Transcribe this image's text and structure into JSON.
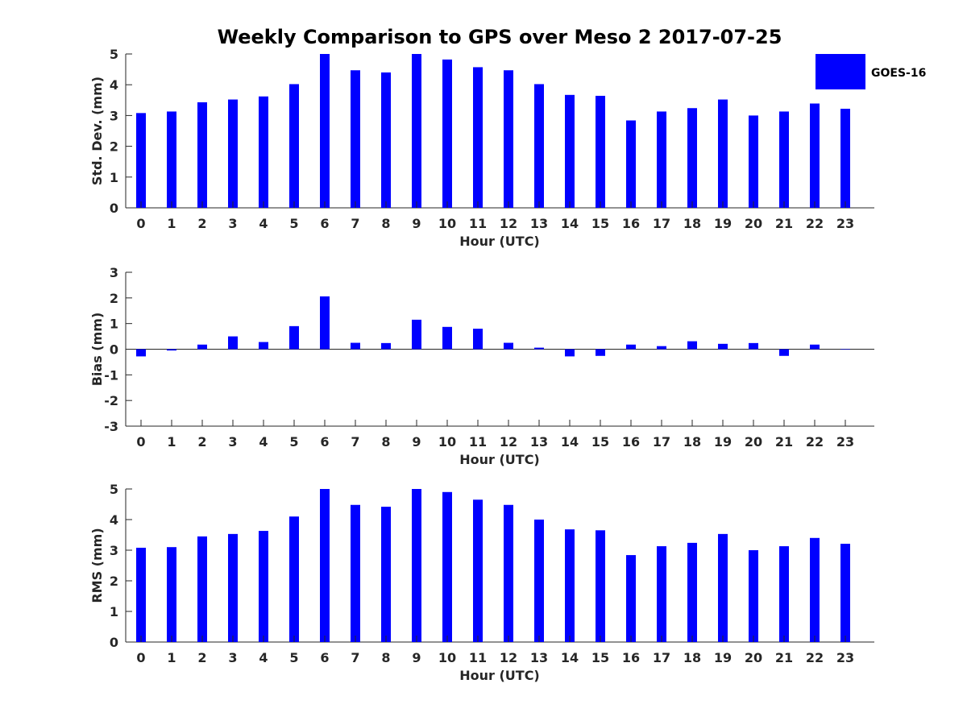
{
  "figure_title": "Weekly Comparison to GPS over Meso 2 2017-07-25",
  "legend": {
    "label": "GOES-16",
    "color": "#0000ff"
  },
  "chart_data": [
    {
      "type": "bar",
      "series": [
        {
          "name": "GOES-16",
          "color": "#0000ff",
          "values": [
            3.08,
            3.13,
            3.43,
            3.52,
            3.62,
            4.02,
            5.0,
            4.47,
            4.4,
            5.0,
            4.82,
            4.57,
            4.47,
            4.02,
            3.67,
            3.64,
            2.84,
            3.13,
            3.24,
            3.52,
            3.0,
            3.13,
            3.39,
            3.22
          ]
        }
      ],
      "categories": [
        "0",
        "1",
        "2",
        "3",
        "4",
        "5",
        "6",
        "7",
        "8",
        "9",
        "10",
        "11",
        "12",
        "13",
        "14",
        "15",
        "16",
        "17",
        "18",
        "19",
        "20",
        "21",
        "22",
        "23"
      ],
      "xlabel": "Hour (UTC)",
      "ylabel": "Std. Dev. (mm)",
      "ylim": [
        0,
        5
      ],
      "yticks": [
        "0",
        "1",
        "2",
        "3",
        "4",
        "5"
      ]
    },
    {
      "type": "bar",
      "series": [
        {
          "name": "GOES-16",
          "color": "#0000ff",
          "values": [
            -0.28,
            -0.05,
            0.18,
            0.5,
            0.28,
            0.9,
            2.06,
            0.25,
            0.24,
            1.15,
            0.87,
            0.8,
            0.25,
            0.06,
            -0.28,
            -0.26,
            0.18,
            0.12,
            0.31,
            0.21,
            0.24,
            -0.26,
            0.18,
            0.0
          ]
        }
      ],
      "categories": [
        "0",
        "1",
        "2",
        "3",
        "4",
        "5",
        "6",
        "7",
        "8",
        "9",
        "10",
        "11",
        "12",
        "13",
        "14",
        "15",
        "16",
        "17",
        "18",
        "19",
        "20",
        "21",
        "22",
        "23"
      ],
      "xlabel": "Hour (UTC)",
      "ylabel": "Bias (mm)",
      "ylim": [
        -3,
        3
      ],
      "yticks": [
        "-3",
        "-2",
        "-1",
        "0",
        "1",
        "2",
        "3"
      ]
    },
    {
      "type": "bar",
      "series": [
        {
          "name": "GOES-16",
          "color": "#0000ff",
          "values": [
            3.08,
            3.1,
            3.45,
            3.53,
            3.63,
            4.1,
            5.0,
            4.48,
            4.42,
            5.0,
            4.9,
            4.65,
            4.48,
            4.0,
            3.68,
            3.65,
            2.84,
            3.13,
            3.24,
            3.53,
            3.0,
            3.13,
            3.4,
            3.21
          ]
        }
      ],
      "categories": [
        "0",
        "1",
        "2",
        "3",
        "4",
        "5",
        "6",
        "7",
        "8",
        "9",
        "10",
        "11",
        "12",
        "13",
        "14",
        "15",
        "16",
        "17",
        "18",
        "19",
        "20",
        "21",
        "22",
        "23"
      ],
      "xlabel": "Hour (UTC)",
      "ylabel": "RMS (mm)",
      "ylim": [
        0,
        5
      ],
      "yticks": [
        "0",
        "1",
        "2",
        "3",
        "4",
        "5"
      ]
    }
  ]
}
